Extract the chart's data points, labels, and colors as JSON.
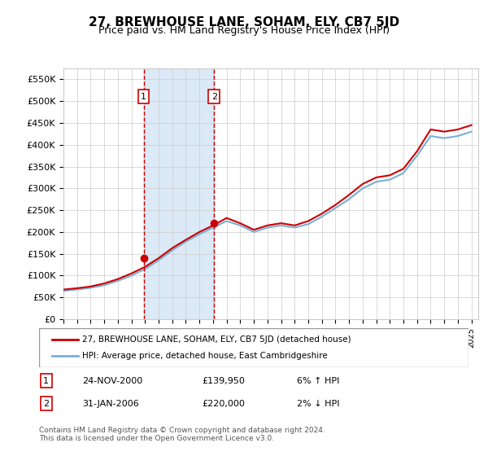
{
  "title": "27, BREWHOUSE LANE, SOHAM, ELY, CB7 5JD",
  "subtitle": "Price paid vs. HM Land Registry's House Price Index (HPI)",
  "ylabel_ticks": [
    "£0",
    "£50K",
    "£100K",
    "£150K",
    "£200K",
    "£250K",
    "£300K",
    "£350K",
    "£400K",
    "£450K",
    "£500K",
    "£550K"
  ],
  "ytick_values": [
    0,
    50000,
    100000,
    150000,
    200000,
    250000,
    300000,
    350000,
    400000,
    450000,
    500000,
    550000
  ],
  "ylim": [
    0,
    575000
  ],
  "xlim_start": 1995.0,
  "xlim_end": 2025.5,
  "purchase1": {
    "date": 2000.9,
    "price": 139950,
    "label": "1",
    "hpi_diff": "6% ↑ HPI",
    "date_str": "24-NOV-2000"
  },
  "purchase2": {
    "date": 2006.08,
    "price": 220000,
    "label": "2",
    "hpi_diff": "2% ↓ HPI",
    "date_str": "31-JAN-2006"
  },
  "shade_color": "#dce9f7",
  "dashed_color": "#cc0000",
  "legend_line1": "27, BREWHOUSE LANE, SOHAM, ELY, CB7 5JD (detached house)",
  "legend_line2": "HPI: Average price, detached house, East Cambridgeshire",
  "footer": "Contains HM Land Registry data © Crown copyright and database right 2024.\nThis data is licensed under the Open Government Licence v3.0.",
  "hpi_color": "#7ab0d4",
  "price_color": "#cc0000",
  "background_color": "#ffffff",
  "grid_color": "#cccccc",
  "years": [
    1995,
    1996,
    1997,
    1998,
    1999,
    2000,
    2001,
    2002,
    2003,
    2004,
    2005,
    2006,
    2007,
    2008,
    2009,
    2010,
    2011,
    2012,
    2013,
    2014,
    2015,
    2016,
    2017,
    2018,
    2019,
    2020,
    2021,
    2022,
    2023,
    2024,
    2025
  ],
  "hpi_values": [
    65000,
    68000,
    72000,
    78000,
    88000,
    100000,
    115000,
    135000,
    158000,
    178000,
    195000,
    210000,
    225000,
    215000,
    200000,
    210000,
    215000,
    210000,
    218000,
    235000,
    255000,
    275000,
    300000,
    315000,
    320000,
    335000,
    375000,
    420000,
    415000,
    420000,
    430000
  ],
  "price_values": [
    68000,
    71000,
    75000,
    82000,
    92000,
    105000,
    120000,
    140000,
    163000,
    182000,
    200000,
    215000,
    232000,
    220000,
    205000,
    215000,
    220000,
    215000,
    225000,
    242000,
    262000,
    285000,
    310000,
    325000,
    330000,
    345000,
    385000,
    435000,
    430000,
    435000,
    445000
  ]
}
